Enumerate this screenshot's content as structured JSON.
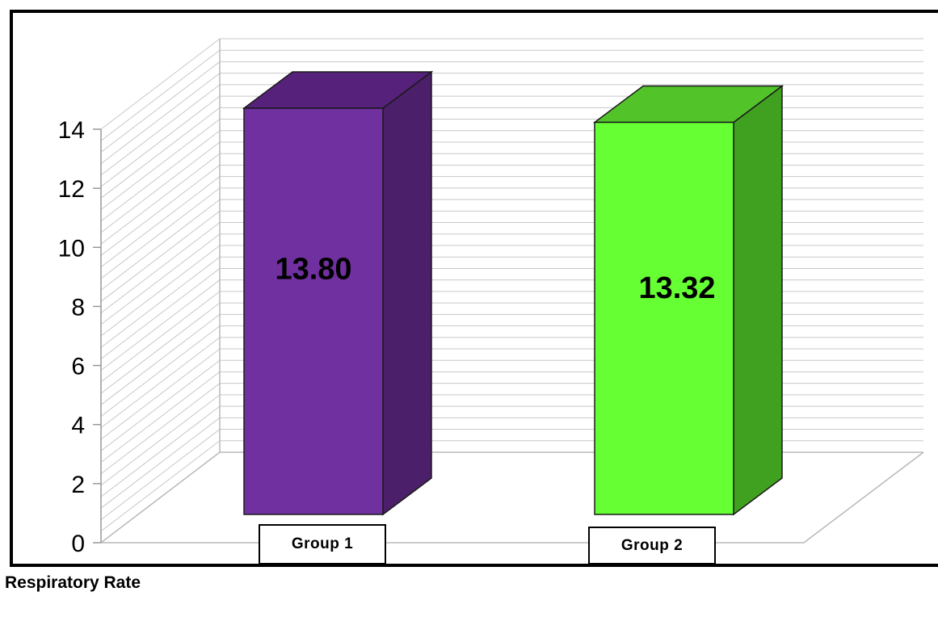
{
  "chart_data": {
    "type": "bar",
    "categories": [
      "Group 1",
      "Group 2"
    ],
    "values": [
      13.8,
      13.32
    ],
    "value_labels": [
      "13.80",
      "13.32"
    ],
    "colors": {
      "Group 1": {
        "front": "#7030a0",
        "side": "#4b1f6a",
        "top": "#56217a"
      },
      "Group 2": {
        "front": "#66ff33",
        "side": "#40a020",
        "top": "#52c42a"
      }
    },
    "ylim": [
      0,
      14
    ],
    "yticks": [
      0,
      2,
      4,
      6,
      8,
      10,
      12,
      14
    ],
    "xlabel": "Respiratory Rate",
    "grid": true,
    "style": "3d"
  }
}
